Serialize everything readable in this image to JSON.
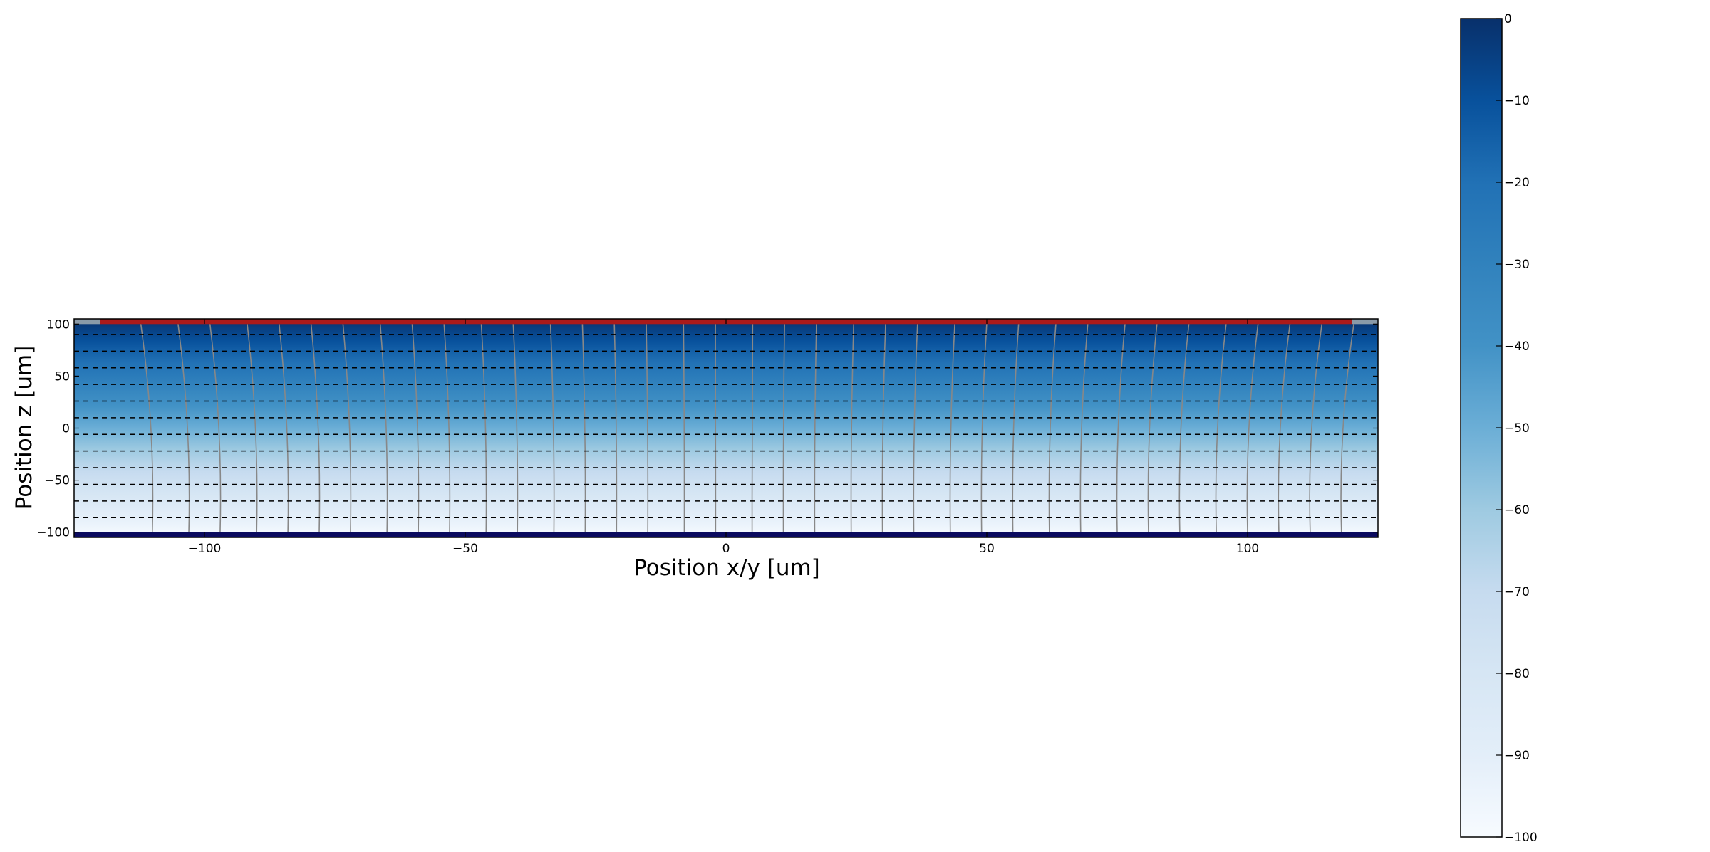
{
  "chart_data": {
    "type": "heatmap",
    "title": "",
    "xlabel": "Position x/y [um]",
    "ylabel": "Position z [um]",
    "xlim": [
      -125,
      125
    ],
    "ylim": [
      -105,
      105
    ],
    "xticks": [
      -100,
      -50,
      0,
      50,
      100
    ],
    "xtick_labels": [
      "−100",
      "−50",
      "0",
      "50",
      "100"
    ],
    "yticks": [
      100,
      50,
      0,
      -50,
      -100
    ],
    "ytick_labels": [
      "100",
      "50",
      "0",
      "−50",
      "−100"
    ],
    "field": {
      "quantity": "potential",
      "z_top": 100,
      "z_bottom": -100,
      "value_at_top": 0,
      "value_at_bottom": -100,
      "profile": "linear in z"
    },
    "colormap": "Blues",
    "colorbar": {
      "range": [
        -100,
        0
      ],
      "ticks": [
        0,
        -10,
        -20,
        -30,
        -40,
        -50,
        -60,
        -70,
        -80,
        -90,
        -100
      ],
      "tick_labels": [
        "0",
        "−10",
        "−20",
        "−30",
        "−40",
        "−50",
        "−60",
        "−70",
        "−80",
        "−90",
        "−100"
      ]
    },
    "equipotential_lines": {
      "style": "dashed",
      "color": "#000000",
      "z": [
        90,
        74,
        58,
        42,
        26,
        10,
        -6,
        -22,
        -38,
        -54,
        -70,
        -86
      ]
    },
    "field_lines": {
      "style": "solid",
      "color": "#888888",
      "x": [
        -110,
        -103,
        -97,
        -90,
        -84,
        -78,
        -72,
        -65,
        -59,
        -53,
        -46,
        -40,
        -33,
        -27,
        -21,
        -15,
        -8,
        -2,
        5,
        11,
        17,
        24,
        30,
        36,
        43,
        49,
        55,
        62,
        68,
        75,
        81,
        87,
        94,
        100,
        106,
        112,
        118
      ]
    },
    "electrodes": [
      {
        "name": "readout",
        "side": "top",
        "x_range": [
          -120,
          120
        ],
        "color": "#aa1a1a"
      },
      {
        "name": "guard-left",
        "side": "top",
        "x_range": [
          -125,
          -120
        ],
        "color": "#8a9aa8"
      },
      {
        "name": "guard-right",
        "side": "top",
        "x_range": [
          120,
          125
        ],
        "color": "#8a9aa8"
      },
      {
        "name": "backplane",
        "side": "bottom",
        "x_range": [
          -125,
          125
        ],
        "color": "#0a0a5e"
      }
    ]
  }
}
